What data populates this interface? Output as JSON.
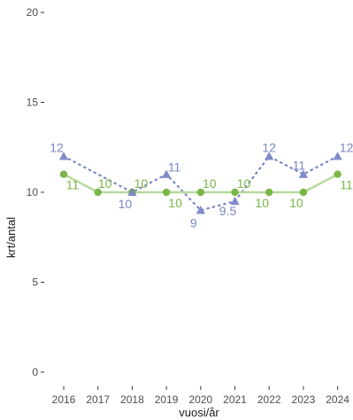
{
  "chart_data": {
    "type": "line",
    "xlabel": "vuosi/år",
    "ylabel": "krt/antal",
    "x": [
      "2016",
      "2017",
      "2018",
      "2019",
      "2020",
      "2021",
      "2022",
      "2023",
      "2024"
    ],
    "ylim": [
      0,
      20
    ],
    "yticks": [
      "0",
      "5",
      "10",
      "15",
      "20"
    ],
    "grid": false,
    "series": [
      {
        "marker": "triangle",
        "line_style": "dotted",
        "color": "#7b86c6",
        "values": [
          12,
          null,
          10,
          11,
          9,
          9.5,
          12,
          11,
          12
        ],
        "labels": [
          "12",
          "",
          "10",
          "11",
          "9",
          "9.5",
          "12",
          "11",
          "12"
        ]
      },
      {
        "marker": "circle",
        "line_style": "solid",
        "color": "#7ab648",
        "line_color": "#b5d99c",
        "values": [
          11,
          10,
          10,
          10,
          10,
          10,
          10,
          10,
          11
        ],
        "labels": [
          "11",
          "10",
          "10",
          "10",
          "10",
          "10",
          "10",
          "10",
          "11"
        ]
      }
    ]
  }
}
